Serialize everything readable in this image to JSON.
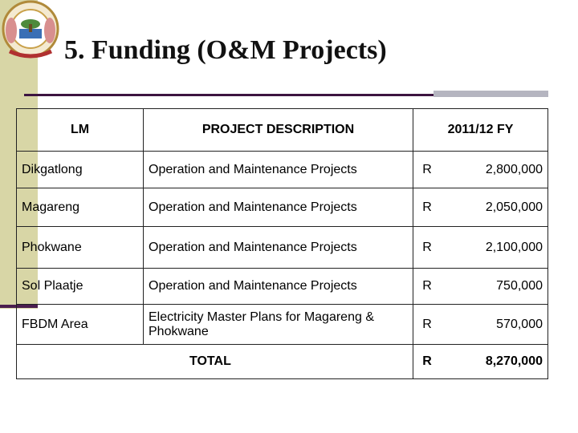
{
  "header": {
    "title": "5. Funding (O&M Projects)"
  },
  "table": {
    "columns": [
      "LM",
      "PROJECT DESCRIPTION",
      "2011/12 FY"
    ],
    "rows": [
      [
        "Dikgatlong",
        "Operation and Maintenance Projects",
        "R",
        "2,800,000"
      ],
      [
        "Magareng",
        "Operation and Maintenance Projects",
        "R",
        "2,050,000"
      ],
      [
        "Phokwane",
        "Operation and Maintenance Projects",
        "R",
        "2,100,000"
      ],
      [
        "Sol Plaatje",
        "Operation and Maintenance Projects",
        "R",
        "750,000"
      ],
      [
        "FBDM Area",
        "Electricity Master Plans for Magareng & Phokwane",
        "R",
        "570,000"
      ]
    ],
    "total": [
      "TOTAL",
      "R",
      "8,270,000"
    ]
  }
}
